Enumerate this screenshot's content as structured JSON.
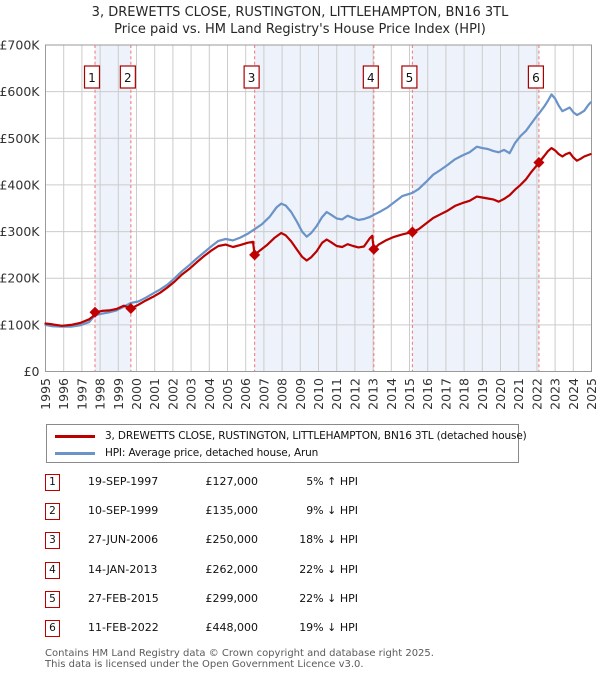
{
  "title": {
    "line1": "3, DREWETTS CLOSE, RUSTINGTON, LITTLEHAMPTON, BN16 3TL",
    "line2": "Price paid vs. HM Land Registry's House Price Index (HPI)"
  },
  "legend": {
    "price_paid": "3, DREWETTS CLOSE, RUSTINGTON, LITTLEHAMPTON, BN16 3TL (detached house)",
    "hpi": "HPI: Average price, detached house, Arun"
  },
  "colors": {
    "price_paid_line": "#bb0000",
    "hpi_line": "#6a93c8",
    "event_dot": "#c00000",
    "event_box_border": "#aa0000",
    "dashed_event_line": "#f07f7f",
    "ownership_band": "#edf2fb",
    "gridline": "#cccccc",
    "plot_border": "#9a9a9a",
    "axis_text": "#333333"
  },
  "transactions": [
    {
      "num": "1",
      "date": "19-SEP-1997",
      "price": "£127,000",
      "delta": "5% ↑ HPI"
    },
    {
      "num": "2",
      "date": "10-SEP-1999",
      "price": "£135,000",
      "delta": "9% ↓ HPI"
    },
    {
      "num": "3",
      "date": "27-JUN-2006",
      "price": "£250,000",
      "delta": "18% ↓ HPI"
    },
    {
      "num": "4",
      "date": "14-JAN-2013",
      "price": "£262,000",
      "delta": "22% ↓ HPI"
    },
    {
      "num": "5",
      "date": "27-FEB-2015",
      "price": "£299,000",
      "delta": "22% ↓ HPI"
    },
    {
      "num": "6",
      "date": "11-FEB-2022",
      "price": "£448,000",
      "delta": "19% ↓ HPI"
    }
  ],
  "footer": {
    "line1": "Contains HM Land Registry data © Crown copyright and database right 2025.",
    "line2": "This data is licensed under the Open Government Licence v3.0."
  },
  "chart_data": {
    "type": "line",
    "title": "3, DREWETTS CLOSE, RUSTINGTON, LITTLEHAMPTON, BN16 3TL",
    "subtitle": "Price paid vs. HM Land Registry's House Price Index (HPI)",
    "xlabel": "",
    "ylabel": "",
    "x_range": [
      1995,
      2025
    ],
    "y_range_k": [
      0,
      700
    ],
    "y_unit": "£K (values below are in thousands of pounds)",
    "grid": true,
    "legend_position": "bottom",
    "y_ticks": [
      {
        "v": 700,
        "label": "£700K"
      },
      {
        "v": 600,
        "label": "£600K"
      },
      {
        "v": 500,
        "label": "£500K"
      },
      {
        "v": 400,
        "label": "£400K"
      },
      {
        "v": 300,
        "label": "£300K"
      },
      {
        "v": 200,
        "label": "£200K"
      },
      {
        "v": 100,
        "label": "£100K"
      },
      {
        "v": 0,
        "label": "£0"
      }
    ],
    "x_ticks": [
      "1995",
      "1996",
      "1997",
      "1998",
      "1999",
      "2000",
      "2001",
      "2002",
      "2003",
      "2004",
      "2005",
      "2006",
      "2007",
      "2008",
      "2009",
      "2010",
      "2011",
      "2012",
      "2013",
      "2014",
      "2015",
      "2016",
      "2017",
      "2018",
      "2019",
      "2020",
      "2021",
      "2022",
      "2023",
      "2024",
      "2025"
    ],
    "ownership_bands": [
      [
        1997.72,
        1999.69
      ],
      [
        2006.49,
        2013.04
      ],
      [
        2015.16,
        2022.11
      ]
    ],
    "events": [
      {
        "label": "1",
        "year": 1997.72,
        "price_k": 127
      },
      {
        "label": "2",
        "year": 1999.69,
        "price_k": 135
      },
      {
        "label": "3",
        "year": 2006.49,
        "price_k": 250
      },
      {
        "label": "4",
        "year": 2013.04,
        "price_k": 262
      },
      {
        "label": "5",
        "year": 2015.16,
        "price_k": 299
      },
      {
        "label": "6",
        "year": 2022.11,
        "price_k": 448
      }
    ],
    "series": [
      {
        "name": "HPI: Average price, detached house, Arun",
        "color_key": "hpi_line",
        "points": [
          [
            1995.0,
            100
          ],
          [
            1995.4,
            97
          ],
          [
            1995.9,
            96
          ],
          [
            1996.4,
            96
          ],
          [
            1996.9,
            99
          ],
          [
            1997.4,
            106
          ],
          [
            1997.72,
            121
          ],
          [
            1998.1,
            124
          ],
          [
            1998.5,
            127
          ],
          [
            1998.9,
            131
          ],
          [
            1999.3,
            139
          ],
          [
            1999.69,
            147
          ],
          [
            2000.1,
            150
          ],
          [
            2000.5,
            158
          ],
          [
            2000.9,
            167
          ],
          [
            2001.3,
            176
          ],
          [
            2001.7,
            186
          ],
          [
            2002.1,
            200
          ],
          [
            2002.5,
            215
          ],
          [
            2002.9,
            228
          ],
          [
            2003.3,
            242
          ],
          [
            2003.7,
            255
          ],
          [
            2004.1,
            268
          ],
          [
            2004.5,
            280
          ],
          [
            2004.9,
            284
          ],
          [
            2005.3,
            281
          ],
          [
            2005.7,
            287
          ],
          [
            2006.1,
            295
          ],
          [
            2006.49,
            305
          ],
          [
            2006.9,
            316
          ],
          [
            2007.3,
            331
          ],
          [
            2007.7,
            352
          ],
          [
            2007.95,
            360
          ],
          [
            2008.2,
            356
          ],
          [
            2008.5,
            342
          ],
          [
            2008.8,
            322
          ],
          [
            2009.1,
            300
          ],
          [
            2009.35,
            289
          ],
          [
            2009.6,
            297
          ],
          [
            2009.9,
            312
          ],
          [
            2010.2,
            331
          ],
          [
            2010.45,
            342
          ],
          [
            2010.7,
            336
          ],
          [
            2011.0,
            328
          ],
          [
            2011.3,
            326
          ],
          [
            2011.6,
            334
          ],
          [
            2011.9,
            329
          ],
          [
            2012.2,
            325
          ],
          [
            2012.5,
            327
          ],
          [
            2012.8,
            331
          ],
          [
            2013.04,
            336
          ],
          [
            2013.4,
            343
          ],
          [
            2013.8,
            352
          ],
          [
            2014.2,
            364
          ],
          [
            2014.6,
            376
          ],
          [
            2015.16,
            383
          ],
          [
            2015.5,
            391
          ],
          [
            2015.9,
            406
          ],
          [
            2016.3,
            422
          ],
          [
            2016.7,
            432
          ],
          [
            2017.1,
            443
          ],
          [
            2017.5,
            455
          ],
          [
            2017.9,
            463
          ],
          [
            2018.3,
            470
          ],
          [
            2018.7,
            482
          ],
          [
            2019.0,
            479
          ],
          [
            2019.3,
            477
          ],
          [
            2019.6,
            473
          ],
          [
            2019.9,
            470
          ],
          [
            2020.2,
            475
          ],
          [
            2020.5,
            468
          ],
          [
            2020.8,
            490
          ],
          [
            2021.1,
            505
          ],
          [
            2021.4,
            516
          ],
          [
            2021.7,
            532
          ],
          [
            2022.0,
            548
          ],
          [
            2022.11,
            553
          ],
          [
            2022.4,
            568
          ],
          [
            2022.6,
            580
          ],
          [
            2022.8,
            594
          ],
          [
            2023.0,
            585
          ],
          [
            2023.2,
            570
          ],
          [
            2023.4,
            558
          ],
          [
            2023.6,
            562
          ],
          [
            2023.8,
            566
          ],
          [
            2024.0,
            556
          ],
          [
            2024.2,
            550
          ],
          [
            2024.4,
            554
          ],
          [
            2024.6,
            559
          ],
          [
            2024.8,
            570
          ],
          [
            2024.95,
            577
          ]
        ]
      },
      {
        "name": "3, DREWETTS CLOSE, RUSTINGTON, LITTLEHAMPTON, BN16 3TL (detached house)",
        "color_key": "price_paid_line",
        "points": [
          [
            1995.0,
            103
          ],
          [
            1995.4,
            101
          ],
          [
            1995.9,
            98
          ],
          [
            1996.4,
            100
          ],
          [
            1996.9,
            104
          ],
          [
            1997.4,
            112
          ],
          [
            1997.6,
            118
          ],
          [
            1997.72,
            127
          ],
          [
            1998.1,
            130
          ],
          [
            1998.5,
            131
          ],
          [
            1998.9,
            134
          ],
          [
            1999.3,
            141
          ],
          [
            1999.69,
            135
          ],
          [
            2000.1,
            143
          ],
          [
            2000.5,
            152
          ],
          [
            2000.9,
            160
          ],
          [
            2001.3,
            169
          ],
          [
            2001.7,
            180
          ],
          [
            2002.1,
            193
          ],
          [
            2002.5,
            208
          ],
          [
            2002.9,
            220
          ],
          [
            2003.3,
            234
          ],
          [
            2003.7,
            247
          ],
          [
            2004.1,
            259
          ],
          [
            2004.5,
            269
          ],
          [
            2004.9,
            272
          ],
          [
            2005.3,
            267
          ],
          [
            2005.7,
            271
          ],
          [
            2006.1,
            276
          ],
          [
            2006.4,
            278
          ],
          [
            2006.49,
            250
          ],
          [
            2006.8,
            260
          ],
          [
            2007.2,
            272
          ],
          [
            2007.6,
            287
          ],
          [
            2007.95,
            297
          ],
          [
            2008.2,
            292
          ],
          [
            2008.5,
            279
          ],
          [
            2008.8,
            262
          ],
          [
            2009.1,
            246
          ],
          [
            2009.35,
            238
          ],
          [
            2009.6,
            245
          ],
          [
            2009.9,
            258
          ],
          [
            2010.2,
            276
          ],
          [
            2010.45,
            283
          ],
          [
            2010.7,
            277
          ],
          [
            2011.0,
            269
          ],
          [
            2011.3,
            267
          ],
          [
            2011.6,
            273
          ],
          [
            2011.9,
            269
          ],
          [
            2012.2,
            266
          ],
          [
            2012.5,
            268
          ],
          [
            2012.8,
            285
          ],
          [
            2012.95,
            291
          ],
          [
            2013.04,
            262
          ],
          [
            2013.3,
            272
          ],
          [
            2013.7,
            281
          ],
          [
            2014.1,
            288
          ],
          [
            2014.6,
            294
          ],
          [
            2015.16,
            299
          ],
          [
            2015.5,
            305
          ],
          [
            2015.9,
            317
          ],
          [
            2016.3,
            329
          ],
          [
            2016.7,
            337
          ],
          [
            2017.1,
            345
          ],
          [
            2017.5,
            355
          ],
          [
            2017.9,
            361
          ],
          [
            2018.3,
            366
          ],
          [
            2018.7,
            375
          ],
          [
            2019.0,
            373
          ],
          [
            2019.3,
            371
          ],
          [
            2019.6,
            369
          ],
          [
            2019.9,
            364
          ],
          [
            2020.2,
            370
          ],
          [
            2020.5,
            378
          ],
          [
            2020.8,
            390
          ],
          [
            2021.1,
            400
          ],
          [
            2021.4,
            412
          ],
          [
            2021.7,
            428
          ],
          [
            2022.0,
            442
          ],
          [
            2022.11,
            448
          ],
          [
            2022.4,
            462
          ],
          [
            2022.6,
            472
          ],
          [
            2022.8,
            479
          ],
          [
            2023.0,
            474
          ],
          [
            2023.2,
            466
          ],
          [
            2023.4,
            461
          ],
          [
            2023.6,
            466
          ],
          [
            2023.8,
            469
          ],
          [
            2024.0,
            459
          ],
          [
            2024.2,
            452
          ],
          [
            2024.4,
            456
          ],
          [
            2024.6,
            461
          ],
          [
            2024.8,
            464
          ],
          [
            2024.95,
            466
          ]
        ]
      }
    ]
  }
}
